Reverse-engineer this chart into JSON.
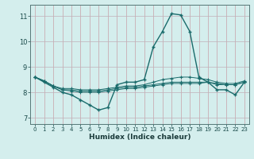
{
  "xlabel": "Humidex (Indice chaleur)",
  "bg_color": "#d4eeed",
  "grid_color_major": "#c8a0a0",
  "grid_color_minor": "#c8c8d8",
  "line_color": "#1a6b6b",
  "xlim": [
    -0.5,
    23.5
  ],
  "ylim": [
    6.75,
    11.45
  ],
  "xticks": [
    0,
    1,
    2,
    3,
    4,
    5,
    6,
    7,
    8,
    9,
    10,
    11,
    12,
    13,
    14,
    15,
    16,
    17,
    18,
    19,
    20,
    21,
    22,
    23
  ],
  "yticks": [
    7,
    8,
    9,
    10,
    11
  ],
  "series_main": [
    8.6,
    8.4,
    8.2,
    8.0,
    7.9,
    7.7,
    7.5,
    7.3,
    7.4,
    8.3,
    8.4,
    8.4,
    8.5,
    9.8,
    10.4,
    11.1,
    11.05,
    10.4,
    8.6,
    8.4,
    8.1,
    8.1,
    7.9,
    8.4
  ],
  "series_flat": [
    [
      8.6,
      8.45,
      8.25,
      8.15,
      8.15,
      8.1,
      8.1,
      8.1,
      8.15,
      8.2,
      8.25,
      8.25,
      8.3,
      8.4,
      8.5,
      8.55,
      8.6,
      8.6,
      8.55,
      8.5,
      8.4,
      8.35,
      8.35,
      8.45
    ],
    [
      8.6,
      8.45,
      8.25,
      8.1,
      8.1,
      8.05,
      8.05,
      8.05,
      8.1,
      8.15,
      8.2,
      8.2,
      8.25,
      8.3,
      8.35,
      8.4,
      8.4,
      8.4,
      8.4,
      8.4,
      8.35,
      8.3,
      8.3,
      8.4
    ],
    [
      8.6,
      8.45,
      8.25,
      8.1,
      8.05,
      8.0,
      8.0,
      8.0,
      8.05,
      8.1,
      8.15,
      8.15,
      8.2,
      8.25,
      8.3,
      8.35,
      8.35,
      8.35,
      8.35,
      8.4,
      8.3,
      8.3,
      8.3,
      8.4
    ]
  ],
  "marker": "+",
  "markersize": 3,
  "linewidth_main": 1.0,
  "linewidth_flat": 0.7
}
